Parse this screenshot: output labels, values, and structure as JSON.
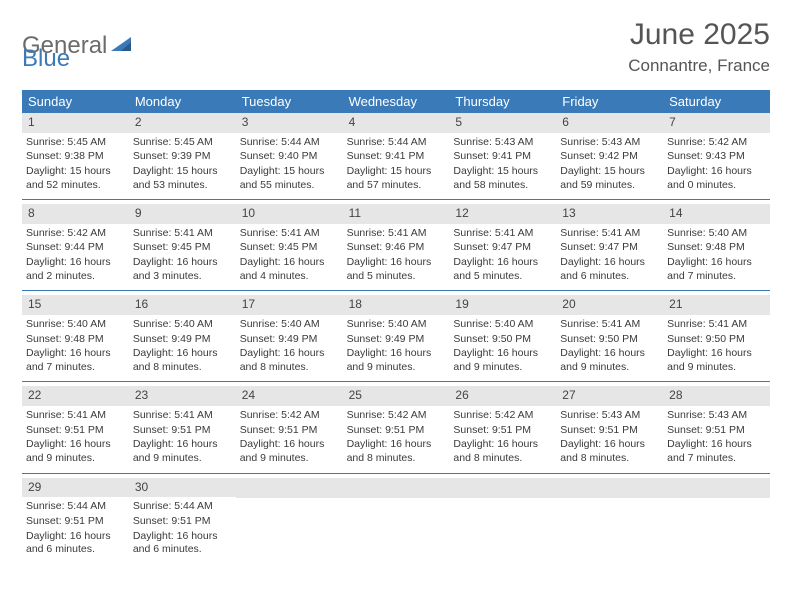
{
  "logo": {
    "general": "General",
    "blue": "Blue"
  },
  "title": "June 2025",
  "location": "Connantre, France",
  "header_color": "#3a7ab8",
  "divider_color": "#3a7ab8",
  "daynum_bg": "#e6e6e6",
  "background": "#ffffff",
  "text_color": "#3a3a3a",
  "dayNames": [
    "Sunday",
    "Monday",
    "Tuesday",
    "Wednesday",
    "Thursday",
    "Friday",
    "Saturday"
  ],
  "labels": {
    "sunrise": "Sunrise:",
    "sunset": "Sunset:",
    "daylight": "Daylight:"
  },
  "weeks": [
    [
      {
        "num": "1",
        "sunrise": "5:45 AM",
        "sunset": "9:38 PM",
        "daylight": "15 hours and 52 minutes."
      },
      {
        "num": "2",
        "sunrise": "5:45 AM",
        "sunset": "9:39 PM",
        "daylight": "15 hours and 53 minutes."
      },
      {
        "num": "3",
        "sunrise": "5:44 AM",
        "sunset": "9:40 PM",
        "daylight": "15 hours and 55 minutes."
      },
      {
        "num": "4",
        "sunrise": "5:44 AM",
        "sunset": "9:41 PM",
        "daylight": "15 hours and 57 minutes."
      },
      {
        "num": "5",
        "sunrise": "5:43 AM",
        "sunset": "9:41 PM",
        "daylight": "15 hours and 58 minutes."
      },
      {
        "num": "6",
        "sunrise": "5:43 AM",
        "sunset": "9:42 PM",
        "daylight": "15 hours and 59 minutes."
      },
      {
        "num": "7",
        "sunrise": "5:42 AM",
        "sunset": "9:43 PM",
        "daylight": "16 hours and 0 minutes."
      }
    ],
    [
      {
        "num": "8",
        "sunrise": "5:42 AM",
        "sunset": "9:44 PM",
        "daylight": "16 hours and 2 minutes."
      },
      {
        "num": "9",
        "sunrise": "5:41 AM",
        "sunset": "9:45 PM",
        "daylight": "16 hours and 3 minutes."
      },
      {
        "num": "10",
        "sunrise": "5:41 AM",
        "sunset": "9:45 PM",
        "daylight": "16 hours and 4 minutes."
      },
      {
        "num": "11",
        "sunrise": "5:41 AM",
        "sunset": "9:46 PM",
        "daylight": "16 hours and 5 minutes."
      },
      {
        "num": "12",
        "sunrise": "5:41 AM",
        "sunset": "9:47 PM",
        "daylight": "16 hours and 5 minutes."
      },
      {
        "num": "13",
        "sunrise": "5:41 AM",
        "sunset": "9:47 PM",
        "daylight": "16 hours and 6 minutes."
      },
      {
        "num": "14",
        "sunrise": "5:40 AM",
        "sunset": "9:48 PM",
        "daylight": "16 hours and 7 minutes."
      }
    ],
    [
      {
        "num": "15",
        "sunrise": "5:40 AM",
        "sunset": "9:48 PM",
        "daylight": "16 hours and 7 minutes."
      },
      {
        "num": "16",
        "sunrise": "5:40 AM",
        "sunset": "9:49 PM",
        "daylight": "16 hours and 8 minutes."
      },
      {
        "num": "17",
        "sunrise": "5:40 AM",
        "sunset": "9:49 PM",
        "daylight": "16 hours and 8 minutes."
      },
      {
        "num": "18",
        "sunrise": "5:40 AM",
        "sunset": "9:49 PM",
        "daylight": "16 hours and 9 minutes."
      },
      {
        "num": "19",
        "sunrise": "5:40 AM",
        "sunset": "9:50 PM",
        "daylight": "16 hours and 9 minutes."
      },
      {
        "num": "20",
        "sunrise": "5:41 AM",
        "sunset": "9:50 PM",
        "daylight": "16 hours and 9 minutes."
      },
      {
        "num": "21",
        "sunrise": "5:41 AM",
        "sunset": "9:50 PM",
        "daylight": "16 hours and 9 minutes."
      }
    ],
    [
      {
        "num": "22",
        "sunrise": "5:41 AM",
        "sunset": "9:51 PM",
        "daylight": "16 hours and 9 minutes."
      },
      {
        "num": "23",
        "sunrise": "5:41 AM",
        "sunset": "9:51 PM",
        "daylight": "16 hours and 9 minutes."
      },
      {
        "num": "24",
        "sunrise": "5:42 AM",
        "sunset": "9:51 PM",
        "daylight": "16 hours and 9 minutes."
      },
      {
        "num": "25",
        "sunrise": "5:42 AM",
        "sunset": "9:51 PM",
        "daylight": "16 hours and 8 minutes."
      },
      {
        "num": "26",
        "sunrise": "5:42 AM",
        "sunset": "9:51 PM",
        "daylight": "16 hours and 8 minutes."
      },
      {
        "num": "27",
        "sunrise": "5:43 AM",
        "sunset": "9:51 PM",
        "daylight": "16 hours and 8 minutes."
      },
      {
        "num": "28",
        "sunrise": "5:43 AM",
        "sunset": "9:51 PM",
        "daylight": "16 hours and 7 minutes."
      }
    ],
    [
      {
        "num": "29",
        "sunrise": "5:44 AM",
        "sunset": "9:51 PM",
        "daylight": "16 hours and 6 minutes."
      },
      {
        "num": "30",
        "sunrise": "5:44 AM",
        "sunset": "9:51 PM",
        "daylight": "16 hours and 6 minutes."
      },
      null,
      null,
      null,
      null,
      null
    ]
  ]
}
